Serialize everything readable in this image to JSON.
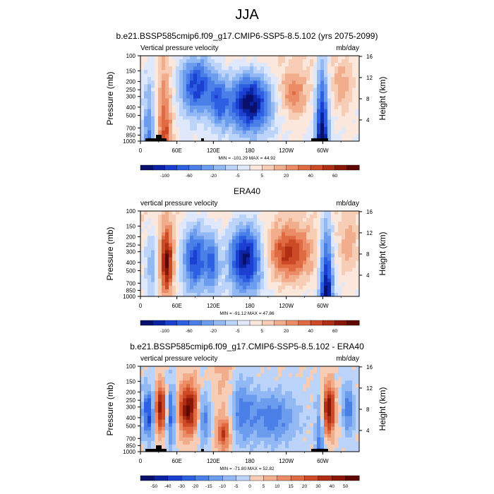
{
  "title": "JJA",
  "chart_data": [
    {
      "type": "heatmap",
      "title": "b.e21.BSSP585cmip6.f09_g17.CMIP6-SSP5-8.5.102 (yrs 2075-2099)",
      "left_label": "Vertical pressure velocity",
      "right_label": "mb/day",
      "ylabel": "Pressure (mb)",
      "ylabel_right": "Height (km)",
      "yticks": [
        "100",
        "150",
        "200",
        "250",
        "300",
        "400",
        "500",
        "700",
        "850",
        "1000"
      ],
      "yticks_right": [
        "16",
        "12",
        "8",
        "4"
      ],
      "xticks": [
        "0",
        "60E",
        "120E",
        "180",
        "120W",
        "60W"
      ],
      "stats": "MIN = -101.29  MAX = 44.92",
      "colorbar": {
        "levels": [
          "-100",
          "-60",
          "-20",
          "-5",
          "5",
          "20",
          "40",
          "60"
        ],
        "colors": [
          "#08106b",
          "#0b24a6",
          "#1b3fd0",
          "#2d5fe3",
          "#4a7fe8",
          "#6b9cee",
          "#93b9f4",
          "#bcd4fa",
          "#dfe9fb",
          "#fbe7dc",
          "#f7cdb6",
          "#f2ad8c",
          "#ec8c66",
          "#e06b43",
          "#cd4a26",
          "#b02e13",
          "#8a1605",
          "#5f0700"
        ]
      }
    },
    {
      "type": "heatmap",
      "title": "ERA40",
      "left_label": "vertical pressure velocity",
      "right_label": "mb/day",
      "ylabel": "Pressure (mb)",
      "ylabel_right": "Height (km)",
      "yticks": [
        "100",
        "150",
        "200",
        "250",
        "300",
        "400",
        "500",
        "700",
        "850",
        "1000"
      ],
      "yticks_right": [
        "16",
        "12",
        "8",
        "4"
      ],
      "xticks": [
        "0",
        "60E",
        "120E",
        "180",
        "120W",
        "60W"
      ],
      "stats": "MIN = -91.12  MAX = 47.86",
      "colorbar": {
        "levels": [
          "-100",
          "-60",
          "-20",
          "-5",
          "5",
          "20",
          "40",
          "60"
        ],
        "colors": [
          "#08106b",
          "#0b24a6",
          "#1b3fd0",
          "#2d5fe3",
          "#4a7fe8",
          "#6b9cee",
          "#93b9f4",
          "#bcd4fa",
          "#dfe9fb",
          "#fbe7dc",
          "#f7cdb6",
          "#f2ad8c",
          "#ec8c66",
          "#e06b43",
          "#cd4a26",
          "#b02e13",
          "#8a1605",
          "#5f0700"
        ]
      }
    },
    {
      "type": "heatmap",
      "title": "b.e21.BSSP585cmip6.f09_g17.CMIP6-SSP5-8.5.102 - ERA40",
      "left_label": "vertical pressure velocity",
      "right_label": "mb/day",
      "ylabel": "Pressure (mb)",
      "ylabel_right": "Height (km)",
      "yticks": [
        "100",
        "150",
        "200",
        "250",
        "300",
        "400",
        "500",
        "700",
        "850",
        "1000"
      ],
      "yticks_right": [
        "16",
        "12",
        "8",
        "4"
      ],
      "xticks": [
        "0",
        "60E",
        "120E",
        "180",
        "120W",
        "60W"
      ],
      "stats": "MIN = -71.80  MAX = 52.82",
      "colorbar": {
        "levels": [
          "-50",
          "-40",
          "-30",
          "-20",
          "-15",
          "-10",
          "-5",
          "0",
          "5",
          "10",
          "15",
          "20",
          "30",
          "40",
          "50"
        ],
        "colors": [
          "#08106b",
          "#0b24a6",
          "#1b3fd0",
          "#2d5fe3",
          "#4a7fe8",
          "#6b9cee",
          "#93b9f4",
          "#bcd4fa",
          "#f7cdb6",
          "#f2ad8c",
          "#ec8c66",
          "#e06b43",
          "#cd4a26",
          "#b02e13",
          "#8a1605",
          "#5f0700"
        ]
      }
    }
  ]
}
